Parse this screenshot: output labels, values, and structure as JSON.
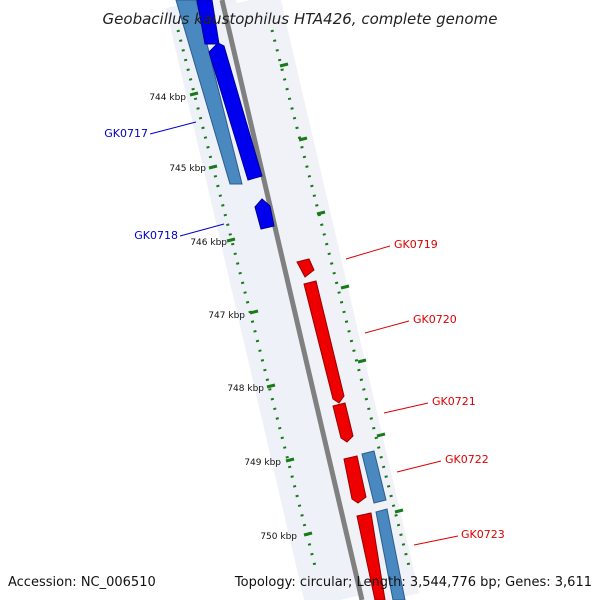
{
  "map": {
    "title": "Geobacillus kaustophilus HTA426, complete genome",
    "accession": "Accession: NC_006510",
    "summary": "Topology: circular; Length: 3,544,776 bp; Genes: 3,611"
  },
  "colors": {
    "backbone": "#8a8a8a",
    "plus_strand": "#0000ee",
    "minus_strand": "#ee0000",
    "cds_feature": "#4a88c0",
    "tick": "#1a7a1a"
  },
  "scale": {
    "unit": "kbp",
    "ticks": [
      "744 kbp",
      "745 kbp",
      "746 kbp",
      "747 kbp",
      "748 kbp",
      "749 kbp",
      "750 kbp"
    ]
  },
  "genes": [
    {
      "name": "GK0717",
      "strand": "plus"
    },
    {
      "name": "GK0718",
      "strand": "plus"
    },
    {
      "name": "GK0719",
      "strand": "minus"
    },
    {
      "name": "GK0720",
      "strand": "minus"
    },
    {
      "name": "GK0721",
      "strand": "minus"
    },
    {
      "name": "GK0722",
      "strand": "minus"
    },
    {
      "name": "GK0723",
      "strand": "minus"
    }
  ]
}
